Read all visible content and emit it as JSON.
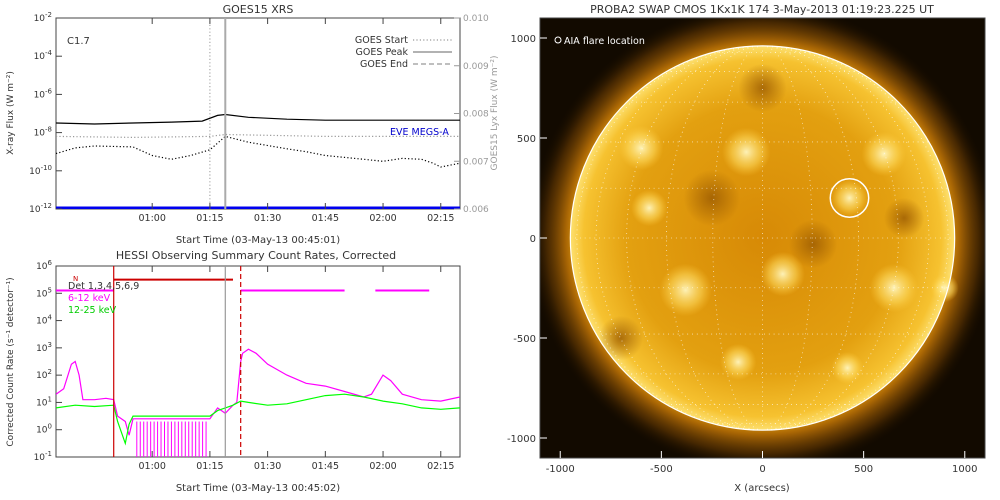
{
  "chart_data": [
    {
      "type": "line",
      "title": "GOES15 XRS",
      "xlabel": "Start Time (03-May-13 00:45:01)",
      "ylabel": "X-ray Flux (W m⁻²)",
      "ylabel_right": "GOES15 Lyx Flux (W m⁻²)",
      "xlim": [
        -10,
        95
      ],
      "xticks": [
        15,
        30,
        45,
        60,
        75,
        90
      ],
      "xtick_labels": [
        "01:00",
        "01:15",
        "01:30",
        "01:45",
        "02:00",
        "02:15"
      ],
      "ylim_log": [
        -12,
        -2
      ],
      "yticks_exp": [
        -12,
        -10,
        -8,
        -6,
        -4,
        -2
      ],
      "y2lim": [
        0.006,
        0.01
      ],
      "y2ticks": [
        0.006,
        0.007,
        0.008,
        0.009,
        0.01
      ],
      "annotation": "C1.7",
      "vlines": [
        {
          "name": "GOES Start",
          "x": 30,
          "style": "dotted"
        },
        {
          "name": "GOES Peak",
          "x": 34,
          "style": "solid"
        }
      ],
      "legend": [
        "GOES Start",
        "GOES Peak",
        "GOES End"
      ],
      "legend_position": "top-right",
      "eve_label": "EVE MEGS-A",
      "series": [
        {
          "name": "",
          "color": "#000000",
          "axis": "left-log",
          "style": "solid",
          "x": [
            -10,
            0,
            10,
            20,
            28,
            32,
            34,
            40,
            50,
            60,
            70,
            80,
            95
          ],
          "y": [
            -7.5,
            -7.55,
            -7.5,
            -7.45,
            -7.4,
            -7.1,
            -7.05,
            -7.2,
            -7.3,
            -7.35,
            -7.35,
            -7.35,
            -7.35
          ]
        },
        {
          "name": "",
          "color": "#999999",
          "axis": "left-log",
          "style": "dotted",
          "x": [
            -10,
            10,
            30,
            34,
            60,
            95
          ],
          "y": [
            -8.2,
            -8.25,
            -8.2,
            -8.1,
            -8.2,
            -8.2
          ]
        },
        {
          "name": "",
          "color": "#000000",
          "axis": "left-log",
          "style": "dotted",
          "x": [
            -10,
            -5,
            0,
            10,
            15,
            20,
            25,
            30,
            34,
            40,
            50,
            55,
            60,
            65,
            70,
            75,
            80,
            85,
            88,
            90,
            95
          ],
          "y": [
            -9.1,
            -8.8,
            -8.7,
            -8.75,
            -9.2,
            -9.4,
            -9.2,
            -8.9,
            -8.2,
            -8.5,
            -8.85,
            -9.0,
            -9.2,
            -9.3,
            -9.4,
            -9.5,
            -9.35,
            -9.4,
            -9.6,
            -9.8,
            -9.6
          ]
        },
        {
          "name": "EVE MEGS-A",
          "color": "#0000ee",
          "axis": "left-log",
          "style": "thick",
          "x": [
            -10,
            95
          ],
          "y": [
            -11.95,
            -11.95
          ]
        }
      ]
    },
    {
      "type": "line",
      "title": "HESSI Observing Summary Count Rates, Corrected",
      "xlabel": "Start Time (03-May-13 00:45:02)",
      "ylabel": "Corrected Count Rate (s⁻¹ detector⁻¹)",
      "xlim": [
        -10,
        95
      ],
      "xticks": [
        15,
        30,
        45,
        60,
        75,
        90
      ],
      "xtick_labels": [
        "01:00",
        "01:15",
        "01:30",
        "01:45",
        "02:00",
        "02:15"
      ],
      "ylim_log": [
        -1,
        6
      ],
      "yticks_exp": [
        -1,
        0,
        1,
        2,
        3,
        4,
        5,
        6
      ],
      "legend_position": "top-left",
      "legend_label": "Det 1,3,4,5,6,9",
      "marker_label": "N",
      "night_bar": {
        "color": "#cc0000",
        "from": 5,
        "to": 36,
        "level": 5.5
      },
      "vlines": [
        {
          "x": 5,
          "color": "#cc0000",
          "style": "solid"
        },
        {
          "x": 34,
          "color": "#999999",
          "style": "solid"
        },
        {
          "x": 38,
          "color": "#cc0000",
          "style": "dashed"
        }
      ],
      "attenuator_bars": [
        {
          "color": "#ff00ff",
          "from": -10,
          "to": 5,
          "level": 5.1
        },
        {
          "color": "#ff00ff",
          "from": 38,
          "to": 65,
          "level": 5.1
        },
        {
          "color": "#ff00ff",
          "from": 73,
          "to": 87,
          "level": 5.1
        }
      ],
      "series": [
        {
          "name": "6-12 keV",
          "color": "#ff00ff",
          "x": [
            -10,
            -8,
            -6,
            -5,
            -4,
            -3,
            0,
            3,
            5,
            6,
            8,
            9,
            10,
            30,
            32,
            34,
            36,
            37,
            38,
            38.5,
            40,
            42,
            45,
            50,
            55,
            60,
            65,
            70,
            72,
            75,
            77,
            80,
            85,
            90,
            95
          ],
          "y": [
            1.3,
            1.5,
            2.4,
            2.5,
            2.0,
            1.1,
            1.1,
            1.15,
            1.1,
            0.5,
            0.3,
            -0.2,
            0.4,
            0.4,
            0.8,
            0.6,
            0.9,
            1.0,
            2.5,
            2.8,
            2.95,
            2.8,
            2.4,
            2.0,
            1.7,
            1.6,
            1.4,
            1.2,
            1.3,
            2.0,
            1.8,
            1.3,
            1.1,
            1.05,
            1.2
          ]
        },
        {
          "name": "12-25 keV",
          "color": "#00ff00",
          "x": [
            -10,
            -5,
            0,
            5,
            6,
            8,
            9,
            10,
            30,
            32,
            34,
            36,
            38,
            40,
            45,
            50,
            55,
            60,
            65,
            70,
            75,
            80,
            85,
            90,
            95
          ],
          "y": [
            0.8,
            0.9,
            0.85,
            0.9,
            0.3,
            -0.5,
            0.2,
            0.5,
            0.5,
            0.7,
            0.8,
            0.9,
            1.05,
            1.0,
            0.9,
            0.95,
            1.1,
            1.25,
            1.3,
            1.2,
            1.05,
            0.95,
            0.8,
            0.75,
            0.8
          ]
        }
      ]
    },
    {
      "type": "scatter",
      "title": "PROBA2 SWAP CMOS 1Kx1K 174  3-May-2013 01:19:23.225 UT",
      "xlabel": "X (arcsecs)",
      "ylabel": "",
      "xlim": [
        -1100,
        1100
      ],
      "ylim": [
        -1100,
        1100
      ],
      "xticks": [
        -1000,
        -500,
        0,
        500,
        1000
      ],
      "yticks": [
        -1000,
        -500,
        0,
        500,
        1000
      ],
      "solar_radius": 950,
      "flare_location": {
        "x": 430,
        "y": 200,
        "r": 95
      },
      "legend_label": "AIA flare location",
      "legend_position": "top-left"
    }
  ]
}
